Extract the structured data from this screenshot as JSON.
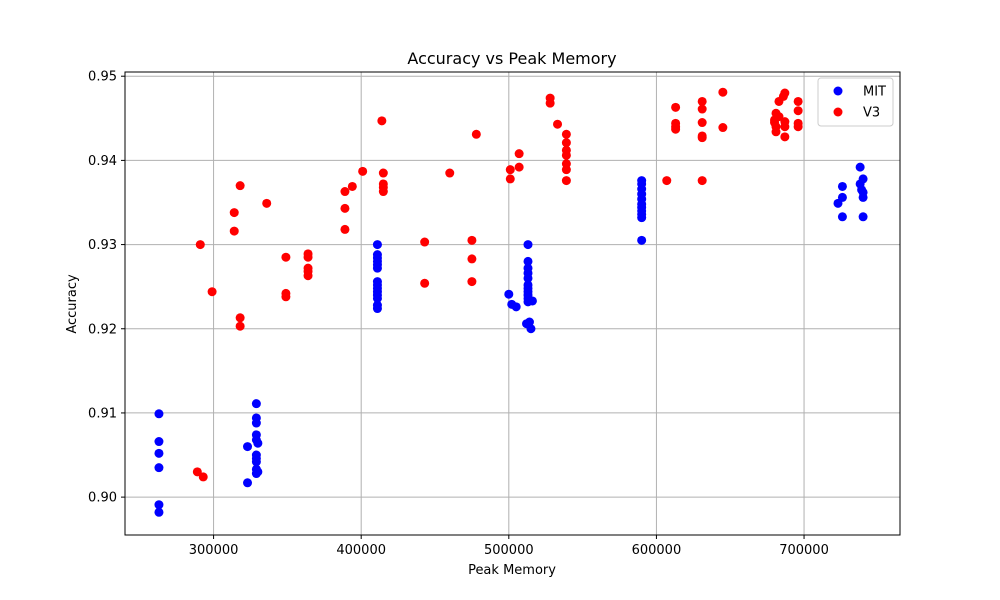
{
  "chart_data": {
    "type": "scatter",
    "title": "Accuracy vs Peak Memory",
    "xlabel": "Peak Memory",
    "ylabel": "Accuracy",
    "xlim": [
      240000,
      765000
    ],
    "ylim": [
      0.8955,
      0.9505
    ],
    "xticks": [
      300000,
      400000,
      500000,
      600000,
      700000
    ],
    "xtick_labels": [
      "300000",
      "400000",
      "500000",
      "600000",
      "700000"
    ],
    "yticks": [
      0.9,
      0.91,
      0.92,
      0.93,
      0.94,
      0.95
    ],
    "ytick_labels": [
      "0.90",
      "0.91",
      "0.92",
      "0.93",
      "0.94",
      "0.95"
    ],
    "grid": true,
    "legend_position": "top-right",
    "series": [
      {
        "name": "MIT",
        "color": "#0000ff",
        "points": [
          [
            263000,
            0.9099
          ],
          [
            263000,
            0.9066
          ],
          [
            263000,
            0.9052
          ],
          [
            263000,
            0.9035
          ],
          [
            263000,
            0.8991
          ],
          [
            263000,
            0.8982
          ],
          [
            323000,
            0.906
          ],
          [
            323000,
            0.9017
          ],
          [
            329000,
            0.9111
          ],
          [
            329000,
            0.9094
          ],
          [
            329000,
            0.9088
          ],
          [
            329000,
            0.9074
          ],
          [
            329000,
            0.9068
          ],
          [
            329000,
            0.905
          ],
          [
            329000,
            0.9046
          ],
          [
            329000,
            0.9042
          ],
          [
            329000,
            0.9033
          ],
          [
            329000,
            0.9028
          ],
          [
            330000,
            0.9064
          ],
          [
            330000,
            0.903
          ],
          [
            411000,
            0.93
          ],
          [
            411000,
            0.9288
          ],
          [
            411000,
            0.9284
          ],
          [
            411000,
            0.928
          ],
          [
            411000,
            0.9276
          ],
          [
            411000,
            0.9272
          ],
          [
            411000,
            0.9256
          ],
          [
            411000,
            0.9252
          ],
          [
            411000,
            0.9248
          ],
          [
            411000,
            0.9244
          ],
          [
            411000,
            0.924
          ],
          [
            411000,
            0.9236
          ],
          [
            411000,
            0.9228
          ],
          [
            411000,
            0.9224
          ],
          [
            500000,
            0.9241
          ],
          [
            502000,
            0.9229
          ],
          [
            505000,
            0.9226
          ],
          [
            513000,
            0.93
          ],
          [
            513000,
            0.928
          ],
          [
            513000,
            0.9272
          ],
          [
            513000,
            0.9266
          ],
          [
            513000,
            0.926
          ],
          [
            513000,
            0.9252
          ],
          [
            513000,
            0.9248
          ],
          [
            513000,
            0.9244
          ],
          [
            513000,
            0.924
          ],
          [
            513000,
            0.9236
          ],
          [
            513000,
            0.9232
          ],
          [
            514000,
            0.9208
          ],
          [
            515000,
            0.92
          ],
          [
            516000,
            0.9233
          ],
          [
            512000,
            0.9206
          ],
          [
            590000,
            0.9376
          ],
          [
            590000,
            0.9372
          ],
          [
            590000,
            0.9366
          ],
          [
            590000,
            0.936
          ],
          [
            590000,
            0.9354
          ],
          [
            590000,
            0.9348
          ],
          [
            590000,
            0.9344
          ],
          [
            590000,
            0.934
          ],
          [
            590000,
            0.9336
          ],
          [
            590000,
            0.9332
          ],
          [
            590000,
            0.9305
          ],
          [
            723000,
            0.9349
          ],
          [
            726000,
            0.9369
          ],
          [
            726000,
            0.9356
          ],
          [
            726000,
            0.9333
          ],
          [
            738000,
            0.9392
          ],
          [
            738000,
            0.9372
          ],
          [
            739000,
            0.9365
          ],
          [
            740000,
            0.9378
          ],
          [
            740000,
            0.9362
          ],
          [
            740000,
            0.9356
          ],
          [
            740000,
            0.9333
          ]
        ]
      },
      {
        "name": "V3",
        "color": "#ff0000",
        "points": [
          [
            289000,
            0.903
          ],
          [
            291000,
            0.93
          ],
          [
            293000,
            0.9024
          ],
          [
            299000,
            0.9244
          ],
          [
            314000,
            0.9338
          ],
          [
            314000,
            0.9316
          ],
          [
            318000,
            0.937
          ],
          [
            318000,
            0.9213
          ],
          [
            318000,
            0.9203
          ],
          [
            336000,
            0.9349
          ],
          [
            349000,
            0.9285
          ],
          [
            349000,
            0.9242
          ],
          [
            349000,
            0.9238
          ],
          [
            364000,
            0.9289
          ],
          [
            364000,
            0.9285
          ],
          [
            364000,
            0.9272
          ],
          [
            364000,
            0.9268
          ],
          [
            364000,
            0.9263
          ],
          [
            389000,
            0.9363
          ],
          [
            389000,
            0.9343
          ],
          [
            389000,
            0.9318
          ],
          [
            394000,
            0.9369
          ],
          [
            401000,
            0.9387
          ],
          [
            414000,
            0.9447
          ],
          [
            415000,
            0.9385
          ],
          [
            415000,
            0.9372
          ],
          [
            415000,
            0.9368
          ],
          [
            415000,
            0.9363
          ],
          [
            443000,
            0.9303
          ],
          [
            443000,
            0.9254
          ],
          [
            460000,
            0.9385
          ],
          [
            475000,
            0.9305
          ],
          [
            475000,
            0.9283
          ],
          [
            475000,
            0.9256
          ],
          [
            478000,
            0.9431
          ],
          [
            501000,
            0.9389
          ],
          [
            501000,
            0.9378
          ],
          [
            507000,
            0.9392
          ],
          [
            507000,
            0.9408
          ],
          [
            528000,
            0.9474
          ],
          [
            528000,
            0.9468
          ],
          [
            533000,
            0.9443
          ],
          [
            539000,
            0.9431
          ],
          [
            539000,
            0.9421
          ],
          [
            539000,
            0.9412
          ],
          [
            539000,
            0.9406
          ],
          [
            539000,
            0.9396
          ],
          [
            539000,
            0.9389
          ],
          [
            539000,
            0.9376
          ],
          [
            607000,
            0.9376
          ],
          [
            613000,
            0.9463
          ],
          [
            613000,
            0.9444
          ],
          [
            613000,
            0.944
          ],
          [
            613000,
            0.9437
          ],
          [
            631000,
            0.947
          ],
          [
            631000,
            0.9461
          ],
          [
            631000,
            0.9445
          ],
          [
            631000,
            0.9429
          ],
          [
            631000,
            0.9427
          ],
          [
            631000,
            0.9376
          ],
          [
            645000,
            0.9481
          ],
          [
            645000,
            0.9439
          ],
          [
            680000,
            0.9448
          ],
          [
            680000,
            0.9445
          ],
          [
            681000,
            0.9456
          ],
          [
            681000,
            0.944
          ],
          [
            681000,
            0.9434
          ],
          [
            683000,
            0.947
          ],
          [
            683000,
            0.9452
          ],
          [
            686000,
            0.9476
          ],
          [
            687000,
            0.948
          ],
          [
            687000,
            0.9446
          ],
          [
            687000,
            0.944
          ],
          [
            687000,
            0.9428
          ],
          [
            696000,
            0.947
          ],
          [
            696000,
            0.9459
          ],
          [
            696000,
            0.9444
          ],
          [
            696000,
            0.944
          ]
        ]
      }
    ]
  }
}
